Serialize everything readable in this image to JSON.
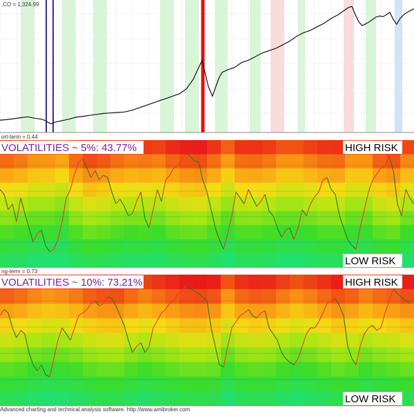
{
  "window": {
    "footer_text": "Advanced charting and technical analysis software. http://www.amibroker.com"
  },
  "colors": {
    "price_line": "#111111",
    "vol_line_up": "#2a7a1a",
    "vol_line_down": "#e0402a",
    "risk_high": "#e8101a",
    "risk_low": "#20e070",
    "marker_purple": "#3a2a8a",
    "marker_red": "#e01010",
    "band_green": "#d8f5d8",
    "band_pink": "#fadadd",
    "band_blue": "#cfe3fa",
    "label_purple": "#7a1f9e"
  },
  "chart_data": [
    {
      "type": "line",
      "pane": "price",
      "label": ",CO = 1,324.99",
      "series": [
        {
          "x": [
            0,
            10,
            20,
            30,
            40,
            50,
            60,
            66,
            70,
            74,
            80,
            90,
            100,
            110,
            120,
            130,
            140,
            150,
            160,
            170,
            180,
            190,
            200,
            210,
            220,
            230,
            240,
            250,
            260,
            270,
            280,
            288,
            293,
            297,
            302,
            308,
            314,
            318,
            322,
            330,
            340,
            350,
            360,
            370,
            380,
            390,
            400,
            410,
            420,
            430,
            440,
            450,
            460,
            470,
            480,
            490,
            500,
            505,
            510,
            515,
            520,
            525,
            530,
            535,
            540,
            545,
            550,
            555,
            560,
            565,
            570,
            575,
            580,
            585,
            590,
            600
          ],
          "y": [
            860,
            862,
            866,
            870,
            874,
            868,
            864,
            858,
            850,
            845,
            852,
            858,
            864,
            872,
            876,
            880,
            884,
            888,
            890,
            892,
            894,
            900,
            910,
            920,
            930,
            940,
            950,
            960,
            970,
            990,
            1030,
            1080,
            1110,
            1060,
            1000,
            960,
            1010,
            1040,
            1060,
            1070,
            1080,
            1100,
            1110,
            1125,
            1140,
            1150,
            1160,
            1175,
            1190,
            1210,
            1225,
            1235,
            1250,
            1265,
            1285,
            1300,
            1320,
            1330,
            1335,
            1300,
            1270,
            1255,
            1262,
            1270,
            1280,
            1290,
            1295,
            1292,
            1300,
            1310,
            1280,
            1260,
            1285,
            1300,
            1310,
            1325
          ]
        }
      ],
      "ylim": [
        820,
        1350
      ],
      "xlim": [
        0,
        600
      ],
      "bands": [
        {
          "x0": 30,
          "x1": 50,
          "color": "green"
        },
        {
          "x0": 90,
          "x1": 110,
          "color": "green"
        },
        {
          "x0": 135,
          "x1": 155,
          "color": "green"
        },
        {
          "x0": 232,
          "x1": 252,
          "color": "green"
        },
        {
          "x0": 268,
          "x1": 288,
          "color": "green"
        },
        {
          "x0": 312,
          "x1": 330,
          "color": "green"
        },
        {
          "x0": 362,
          "x1": 378,
          "color": "green"
        },
        {
          "x0": 392,
          "x1": 412,
          "color": "pink"
        },
        {
          "x0": 432,
          "x1": 442,
          "color": "green"
        },
        {
          "x0": 498,
          "x1": 513,
          "color": "pink"
        },
        {
          "x0": 530,
          "x1": 545,
          "color": "green"
        },
        {
          "x0": 572,
          "x1": 583,
          "color": "blue"
        }
      ],
      "markers": [
        {
          "x": 67,
          "color": "purple"
        },
        {
          "x": 77,
          "color": "purple"
        },
        {
          "x": 294,
          "color": "red",
          "width": 5
        }
      ]
    },
    {
      "type": "line",
      "pane": "short-term",
      "label": "ort-term = 0.44",
      "title": "VOLATILITIES ~ 5%: 43.77%",
      "high_label": "HIGH RISK",
      "low_label": "LOW RISK",
      "ylim": [
        0,
        100
      ],
      "series": [
        {
          "x": [
            0,
            6,
            12,
            18,
            24,
            30,
            36,
            42,
            48,
            54,
            60,
            66,
            72,
            78,
            84,
            90,
            96,
            102,
            108,
            114,
            120,
            126,
            132,
            138,
            144,
            150,
            156,
            162,
            168,
            174,
            180,
            186,
            192,
            198,
            204,
            210,
            216,
            222,
            228,
            234,
            240,
            246,
            252,
            258,
            264,
            270,
            276,
            282,
            288,
            294,
            300,
            306,
            312,
            318,
            324,
            330,
            336,
            342,
            348,
            354,
            360,
            366,
            372,
            378,
            384,
            390,
            396,
            402,
            408,
            414,
            420,
            426,
            432,
            438,
            444,
            450,
            456,
            462,
            468,
            474,
            480,
            486,
            492,
            498,
            504,
            510,
            516,
            522,
            528,
            534,
            540,
            546,
            552,
            558,
            564,
            570,
            576,
            582,
            588,
            594,
            600
          ],
          "y": [
            62,
            58,
            45,
            50,
            35,
            55,
            42,
            30,
            18,
            25,
            28,
            15,
            10,
            12,
            20,
            35,
            55,
            62,
            75,
            85,
            88,
            80,
            72,
            78,
            70,
            74,
            72,
            60,
            50,
            54,
            48,
            40,
            42,
            52,
            60,
            38,
            30,
            45,
            62,
            52,
            70,
            74,
            80,
            82,
            88,
            92,
            90,
            86,
            85,
            70,
            60,
            45,
            30,
            20,
            12,
            25,
            40,
            60,
            55,
            50,
            62,
            55,
            48,
            52,
            58,
            44,
            40,
            30,
            22,
            28,
            30,
            20,
            30,
            45,
            40,
            50,
            56,
            60,
            70,
            72,
            62,
            58,
            40,
            30,
            20,
            15,
            12,
            30,
            45,
            60,
            70,
            75,
            80,
            82,
            90,
            78,
            50,
            40,
            62,
            55,
            50
          ]
        }
      ]
    },
    {
      "type": "line",
      "pane": "long-term",
      "label": "ng-term = 0.73",
      "title": "VOLATILITIES ~ 10%: 73.21%",
      "high_label": "HIGH RISK",
      "low_label": "LOW RISK",
      "ylim": [
        0,
        100
      ],
      "series": [
        {
          "x": [
            0,
            6,
            12,
            18,
            24,
            30,
            36,
            42,
            48,
            54,
            60,
            66,
            72,
            78,
            84,
            90,
            96,
            102,
            108,
            114,
            120,
            126,
            132,
            138,
            144,
            150,
            156,
            162,
            168,
            174,
            180,
            186,
            192,
            198,
            204,
            210,
            216,
            222,
            228,
            234,
            240,
            246,
            252,
            258,
            264,
            270,
            276,
            282,
            288,
            294,
            300,
            306,
            312,
            318,
            324,
            330,
            336,
            342,
            348,
            354,
            360,
            366,
            372,
            378,
            384,
            390,
            396,
            402,
            408,
            414,
            420,
            426,
            432,
            438,
            444,
            450,
            456,
            462,
            468,
            474,
            480,
            486,
            492,
            498,
            504,
            510,
            516,
            522,
            528,
            534,
            540,
            546,
            552,
            558,
            564,
            570,
            576,
            582,
            588,
            594,
            600
          ],
          "y": [
            70,
            75,
            72,
            60,
            52,
            58,
            55,
            40,
            30,
            25,
            30,
            22,
            20,
            35,
            50,
            60,
            55,
            50,
            60,
            70,
            72,
            75,
            80,
            82,
            78,
            80,
            85,
            84,
            78,
            70,
            62,
            50,
            40,
            45,
            48,
            40,
            45,
            60,
            66,
            72,
            75,
            80,
            82,
            88,
            90,
            95,
            92,
            90,
            88,
            85,
            82,
            60,
            45,
            30,
            28,
            45,
            60,
            65,
            70,
            72,
            75,
            70,
            68,
            72,
            74,
            60,
            55,
            50,
            40,
            35,
            32,
            30,
            35,
            45,
            55,
            60,
            60,
            65,
            72,
            80,
            82,
            84,
            78,
            70,
            45,
            35,
            30,
            45,
            55,
            60,
            62,
            58,
            60,
            72,
            82,
            92,
            88,
            85,
            82,
            80,
            84
          ]
        }
      ]
    }
  ]
}
